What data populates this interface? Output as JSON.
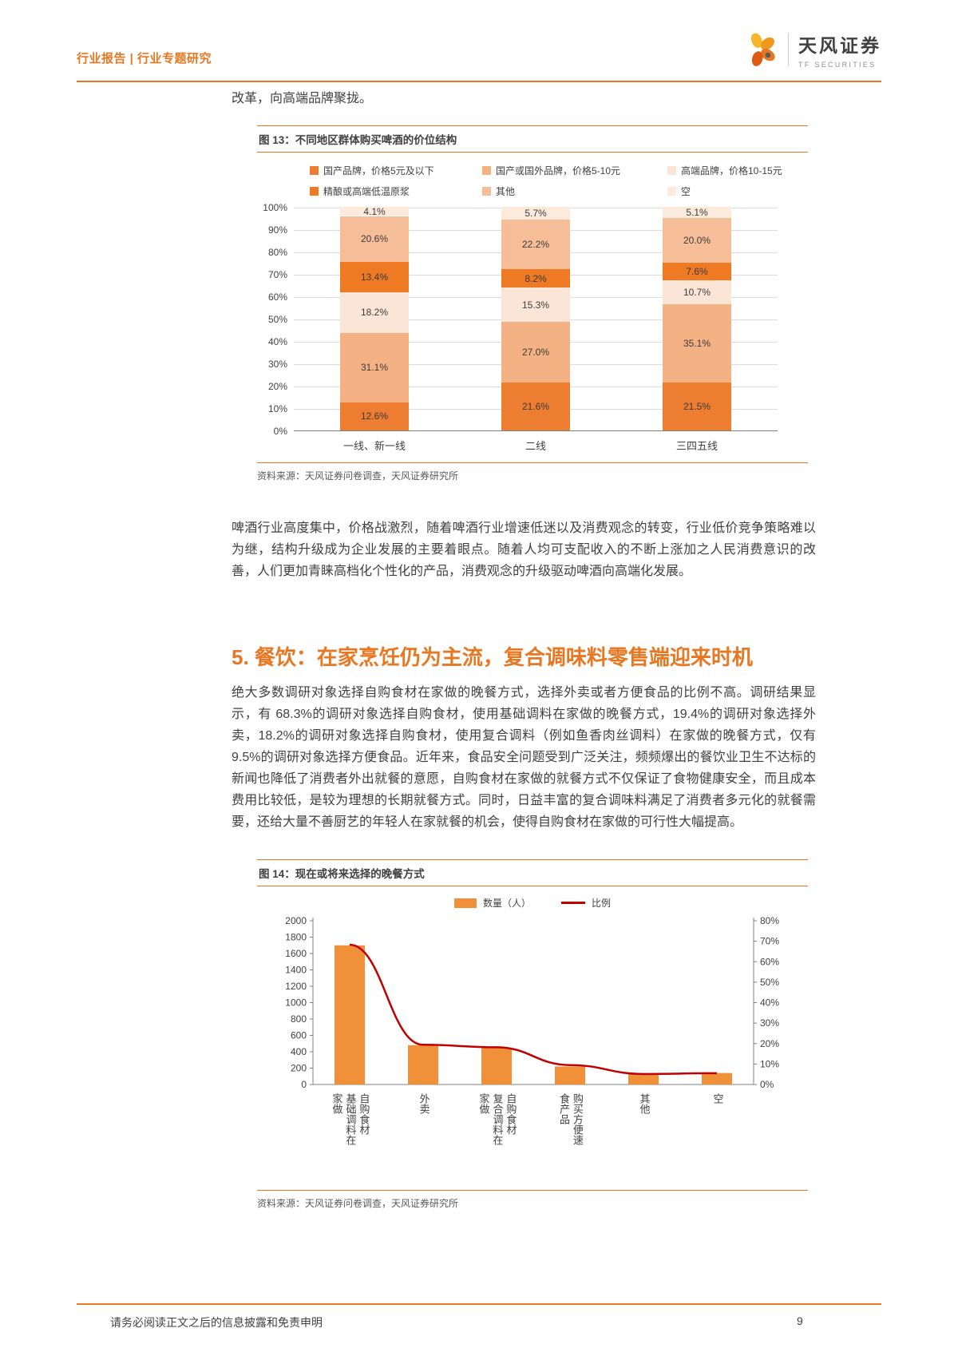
{
  "header": {
    "breadcrumb": "行业报告 | 行业专题研究",
    "logo_cn": "天风证券",
    "logo_en": "TF SECURITIES"
  },
  "intro": {
    "text": "改革，向高端品牌聚拢。"
  },
  "figure13": {
    "title": "图 13：不同地区群体购买啤酒的价位结构",
    "source": "资料来源：天风证券问卷调查，天风证券研究所"
  },
  "paragraphs": {
    "beer": "啤酒行业高度集中，价格战激烈，随着啤酒行业增速低迷以及消费观念的转变，行业低价竞争策略难以为继，结构升级成为企业发展的主要着眼点。随着人均可支配收入的不断上涨加之人民消费意识的改善，人们更加青睐高档化个性化的产品，消费观念的升级驱动啤酒向高端化发展。"
  },
  "section5": {
    "heading": "5. 餐饮：在家烹饪仍为主流，复合调味料零售端迎来时机",
    "body": "绝大多数调研对象选择自购食材在家做的晚餐方式，选择外卖或者方便食品的比例不高。调研结果显示，有 68.3%的调研对象选择自购食材，使用基础调料在家做的晚餐方式，19.4%的调研对象选择外卖，18.2%的调研对象选择自购食材，使用复合调料（例如鱼香肉丝调料）在家做的晚餐方式，仅有 9.5%的调研对象选择方便食品。近年来，食品安全问题受到广泛关注，频频爆出的餐饮业卫生不达标的新闻也降低了消费者外出就餐的意愿，自购食材在家做的就餐方式不仅保证了食物健康安全，而且成本费用比较低，是较为理想的长期就餐方式。同时，日益丰富的复合调味料满足了消费者多元化的就餐需要，还给大量不善厨艺的年轻人在家就餐的机会，使得自购食材在家做的可行性大幅提高。"
  },
  "figure14": {
    "title": "图 14：现在或将来选择的晚餐方式",
    "source": "资料来源：天风证券问卷调查，天风证券研究所"
  },
  "footer": {
    "disclaimer": "请务必阅读正文之后的信息披露和免责申明",
    "page_number": "9"
  },
  "chart_data": [
    {
      "id": "fig13",
      "type": "bar",
      "stacked": true,
      "title": "不同地区群体购买啤酒的价位结构",
      "categories": [
        "一线、新一线",
        "二线",
        "三四五线"
      ],
      "series": [
        {
          "name": "国产品牌，价格5元及以下",
          "color": "#ED7D31",
          "values": [
            12.6,
            21.6,
            21.5
          ]
        },
        {
          "name": "国产或国外品牌，价格5-10元",
          "color": "#F4B183",
          "values": [
            31.1,
            27.0,
            35.1
          ]
        },
        {
          "name": "高端品牌，价格10-15元",
          "color": "#FBE5D6",
          "values": [
            18.2,
            15.3,
            10.7
          ]
        },
        {
          "name": "精酿或高端低温原浆",
          "color": "#EE7A23",
          "values": [
            13.4,
            8.2,
            7.6
          ]
        },
        {
          "name": "其他",
          "color": "#F6BE98",
          "values": [
            20.6,
            22.2,
            20.0
          ]
        },
        {
          "name": "空",
          "color": "#FCEBDD",
          "values": [
            4.1,
            5.7,
            5.1
          ]
        }
      ],
      "y_axis": {
        "min": 0,
        "max": 100,
        "step": 10,
        "suffix": "%"
      },
      "legend_position": "top",
      "grid": true
    },
    {
      "id": "fig14",
      "type": "combo",
      "title": "现在或将来选择的晚餐方式",
      "categories": [
        "自购食材\n基础调料在\n家做",
        "外卖",
        "自购食材\n复合调料在\n家做",
        "购买方便速\n食产品",
        "其他",
        "空"
      ],
      "bar_series": {
        "name": "数量（人）",
        "color": "#F0913A",
        "values": [
          1700,
          480,
          450,
          220,
          130,
          140
        ]
      },
      "line_series": {
        "name": "比例",
        "color": "#C00000",
        "values": [
          68.3,
          19.4,
          18.2,
          9.5,
          5.1,
          5.5
        ]
      },
      "left_axis": {
        "min": 0,
        "max": 2000,
        "step": 200,
        "suffix": ""
      },
      "right_axis": {
        "min": 0,
        "max": 80,
        "step": 10,
        "suffix": "%"
      },
      "legend_position": "top",
      "grid": false
    }
  ]
}
